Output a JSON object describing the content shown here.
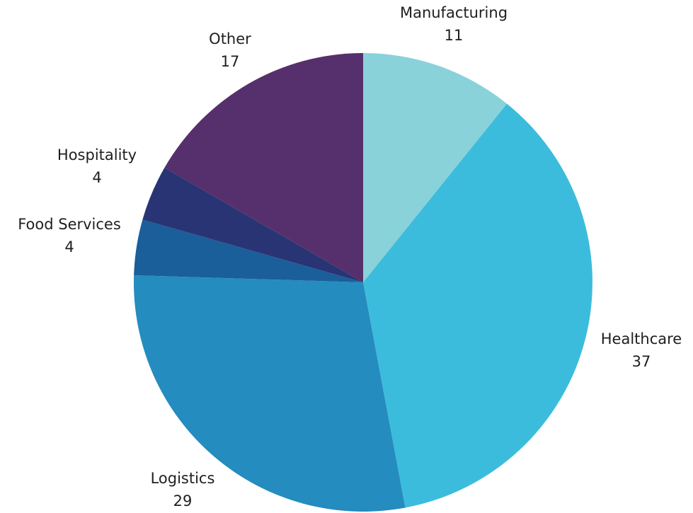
{
  "chart_data": {
    "type": "pie",
    "categories": [
      "Manufacturing",
      "Healthcare",
      "Logistics",
      "Food Services",
      "Hospitality",
      "Other"
    ],
    "values": [
      11,
      37,
      29,
      4,
      4,
      17
    ],
    "value_labels": [
      "11",
      "37",
      "29",
      "4",
      "4",
      "17"
    ],
    "colors": [
      "#89D2DA",
      "#3CBCDC",
      "#248CBE",
      "#1A5E9A",
      "#293474",
      "#56306C"
    ],
    "start_angle": "12 o'clock",
    "direction": "clockwise",
    "legend": "none",
    "data_labels": "outside"
  }
}
